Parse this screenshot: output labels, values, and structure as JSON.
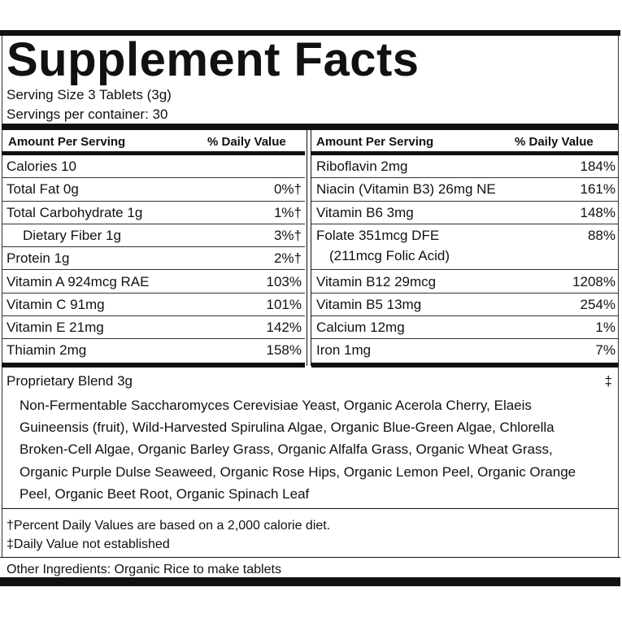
{
  "title": "Supplement Facts",
  "serving_size": "Serving Size 3 Tablets (3g)",
  "servings_per_container": "Servings per container: 30",
  "left_table": {
    "header": [
      "Amount Per Serving",
      "% Daily Value"
    ],
    "rows": [
      {
        "name": "Calories 10"
      },
      {
        "name": "Total Fat 0g",
        "dv": "0%†"
      },
      {
        "name": "Total Carbohydrate 1g",
        "dv": "1%†"
      },
      {
        "name": "Dietary Fiber 1g",
        "dv": "3%†",
        "indent": true
      },
      {
        "name": "Protein 1g",
        "dv": "2%†"
      },
      {
        "name": "Vitamin A 924mcg RAE",
        "dv": "103%"
      },
      {
        "name": "Vitamin C 91mg",
        "dv": "101%"
      },
      {
        "name": "Vitamin E 21mg",
        "dv": "142%"
      },
      {
        "name": "Thiamin 2mg",
        "dv": "158%"
      }
    ]
  },
  "right_table": {
    "header": [
      "Amount Per Serving",
      "% Daily Value"
    ],
    "rows": [
      {
        "name": "Riboflavin 2mg",
        "dv": "184%"
      },
      {
        "name": "Niacin (Vitamin B3) 26mg NE",
        "dv": "161%"
      },
      {
        "name": "Vitamin B6 3mg",
        "dv": "148%"
      },
      {
        "name": "Folate 351mcg DFE",
        "note": "(211mcg Folic Acid)",
        "dv": "88%"
      },
      {
        "name": "Vitamin B12 29mcg",
        "dv": "1208%"
      },
      {
        "name": "Vitamin B5 13mg",
        "dv": "254%"
      },
      {
        "name": "Calcium 12mg",
        "dv": "1%"
      },
      {
        "name": "Iron 1mg",
        "dv": "7%"
      }
    ]
  },
  "proprietary_blend": {
    "name": "Proprietary Blend 3g",
    "dv": "‡",
    "ingredients": "Non-Fermentable Saccharomyces Cerevisiae Yeast, Organic Acerola Cherry, Elaeis Guineensis (fruit), Wild-Harvested Spirulina Algae, Organic Blue-Green Algae, Chlorella Broken-Cell Algae, Organic Barley Grass, Organic Alfalfa Grass, Organic Wheat Grass, Organic Purple Dulse Seaweed, Organic Rose Hips, Organic Lemon Peel, Organic Orange Peel, Organic Beet Root, Organic Spinach Leaf"
  },
  "footnotes": [
    "†Percent Daily Values are based on a 2,000 calorie diet.",
    "‡Daily Value not established"
  ],
  "other_ingredients": "Other Ingredients: Organic Rice to make tablets"
}
